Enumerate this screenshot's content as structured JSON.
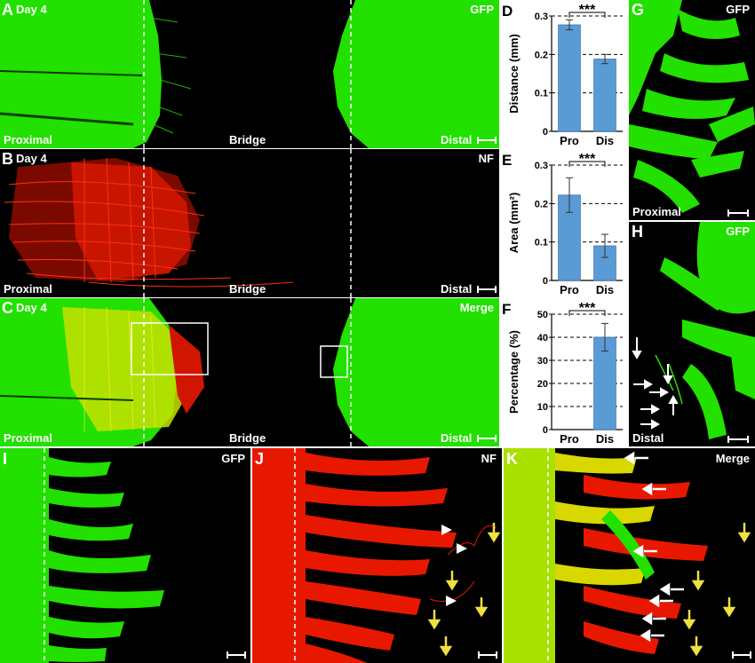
{
  "panels": {
    "A": {
      "letter": "A",
      "day": "Day 4",
      "stain": "GFP",
      "left": "Proximal",
      "mid": "Bridge",
      "right": "Distal"
    },
    "B": {
      "letter": "B",
      "day": "Day 4",
      "stain": "NF",
      "left": "Proximal",
      "mid": "Bridge",
      "right": "Distal"
    },
    "C": {
      "letter": "C",
      "day": "Day 4",
      "stain": "Merge",
      "left": "Proximal",
      "mid": "Bridge",
      "right": "Distal"
    },
    "G": {
      "letter": "G",
      "stain": "GFP",
      "bottom": "Proximal"
    },
    "H": {
      "letter": "H",
      "stain": "GFP",
      "bottom": "Distal"
    },
    "I": {
      "letter": "I",
      "stain": "GFP"
    },
    "J": {
      "letter": "J",
      "stain": "NF"
    },
    "K": {
      "letter": "K",
      "stain": "Merge"
    }
  },
  "colors": {
    "gfp": "#22e000",
    "nf": "#ff1a00",
    "merge": "#e8e800",
    "bar": "#5b9bd5"
  },
  "chart_data": [
    {
      "letter": "D",
      "type": "bar",
      "categories": [
        "Pro",
        "Dis"
      ],
      "values": [
        0.277,
        0.188
      ],
      "errors": [
        0.013,
        0.012
      ],
      "ylabel": "Distance (mm)",
      "ylim": [
        0,
        0.3
      ],
      "ticks": [
        "0",
        "0.1",
        "0.2",
        "0.3"
      ],
      "significance": "***"
    },
    {
      "letter": "E",
      "type": "bar",
      "categories": [
        "Pro",
        "Dis"
      ],
      "values": [
        0.222,
        0.09
      ],
      "errors": [
        0.045,
        0.03
      ],
      "ylabel": "Area (mm²)",
      "ylim": [
        0,
        0.3
      ],
      "ticks": [
        "0",
        "0.1",
        "0.2",
        "0.3"
      ],
      "significance": "***"
    },
    {
      "letter": "F",
      "type": "bar",
      "categories": [
        "Pro",
        "Dis"
      ],
      "values": [
        0,
        40
      ],
      "errors": [
        0,
        6
      ],
      "ylabel": "Percentage (%)",
      "ylim": [
        0,
        50
      ],
      "ticks": [
        "0",
        "10",
        "20",
        "30",
        "40",
        "50"
      ],
      "significance": "***"
    }
  ]
}
